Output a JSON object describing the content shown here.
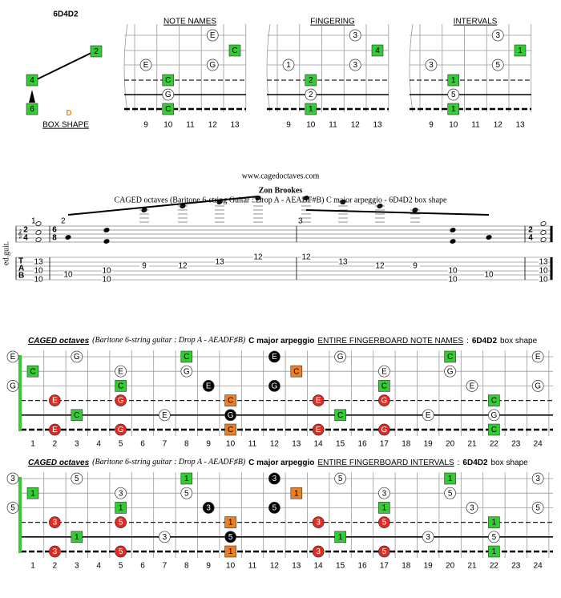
{
  "logo": {
    "title": "6D4D2",
    "letter": "D",
    "caption": "BOX SHAPE",
    "markers": [
      "2",
      "4",
      "6"
    ]
  },
  "diagram_frets": [
    9,
    10,
    11,
    12,
    13
  ],
  "diagrams": [
    {
      "title": "NOTE NAMES",
      "notes": [
        [
          1,
          12,
          "E",
          "#ffffff",
          "circle"
        ],
        [
          2,
          13,
          "C",
          "#33cc33",
          "square"
        ],
        [
          3,
          9,
          "E",
          "#ffffff",
          "circle"
        ],
        [
          3,
          12,
          "G",
          "#ffffff",
          "circle"
        ],
        [
          4,
          10,
          "C",
          "#33cc33",
          "square"
        ],
        [
          5,
          10,
          "G",
          "#ffffff",
          "circle"
        ],
        [
          6,
          10,
          "C",
          "#33cc33",
          "square"
        ]
      ]
    },
    {
      "title": "FINGERING",
      "notes": [
        [
          1,
          12,
          "3",
          "#ffffff",
          "circle"
        ],
        [
          2,
          13,
          "4",
          "#33cc33",
          "square"
        ],
        [
          3,
          9,
          "1",
          "#ffffff",
          "circle"
        ],
        [
          3,
          12,
          "3",
          "#ffffff",
          "circle"
        ],
        [
          4,
          10,
          "2",
          "#33cc33",
          "square"
        ],
        [
          5,
          10,
          "2",
          "#ffffff",
          "circle"
        ],
        [
          6,
          10,
          "1",
          "#33cc33",
          "square"
        ]
      ]
    },
    {
      "title": "INTERVALS",
      "notes": [
        [
          1,
          12,
          "3",
          "#ffffff",
          "circle"
        ],
        [
          2,
          13,
          "1",
          "#33cc33",
          "square"
        ],
        [
          3,
          9,
          "3",
          "#ffffff",
          "circle"
        ],
        [
          3,
          12,
          "5",
          "#ffffff",
          "circle"
        ],
        [
          4,
          10,
          "1",
          "#33cc33",
          "square"
        ],
        [
          5,
          10,
          "5",
          "#ffffff",
          "circle"
        ],
        [
          6,
          10,
          "1",
          "#33cc33",
          "square"
        ]
      ]
    }
  ],
  "score": {
    "site": "www.cagedoctaves.com",
    "author": "Zon Brookes",
    "subtitle": "CAGED octaves (Baritone 6-string Guitar : Drop A - AEADF#B) C major arpeggio - 6D4D2 box shape",
    "instrument": "ed.guit.",
    "tab_clef": [
      "T",
      "A",
      "B"
    ],
    "time_signatures": [
      [
        2,
        4
      ],
      [
        6,
        8
      ],
      [
        2,
        4
      ]
    ],
    "measure_numbers": [
      1,
      2,
      3
    ],
    "tab": [
      [
        [
          2,
          13
        ],
        [
          4,
          10
        ],
        [
          6,
          10
        ]
      ],
      [
        [
          5,
          10
        ]
      ],
      [
        [
          4,
          10
        ],
        [
          6,
          10
        ]
      ],
      [
        [
          3,
          9
        ]
      ],
      [
        [
          3,
          12
        ]
      ],
      [
        [
          2,
          13
        ]
      ],
      [
        [
          1,
          12
        ]
      ],
      [
        [
          1,
          12
        ]
      ],
      [
        [
          2,
          13
        ]
      ],
      [
        [
          3,
          12
        ]
      ],
      [
        [
          3,
          9
        ]
      ],
      [
        [
          4,
          10
        ],
        [
          6,
          10
        ]
      ],
      [
        [
          5,
          10
        ]
      ],
      [
        [
          2,
          13
        ],
        [
          4,
          10
        ],
        [
          6,
          10
        ]
      ]
    ]
  },
  "board_frets": [
    1,
    2,
    3,
    4,
    5,
    6,
    7,
    8,
    9,
    10,
    11,
    12,
    13,
    14,
    15,
    16,
    17,
    18,
    19,
    20,
    21,
    22,
    23,
    24
  ],
  "boards": [
    {
      "title_parts": [
        "CAGED octaves",
        "(Baritone 6-string guitar : Drop A - AEADF♯B)",
        "C major arpeggio",
        "ENTIRE FINGERBOARD NOTE NAMES",
        ":",
        "6D4D2",
        "box shape"
      ],
      "notes": [
        [
          1,
          0,
          "E",
          "#ffffff",
          "circle"
        ],
        [
          1,
          3,
          "G",
          "#ffffff",
          "circle"
        ],
        [
          1,
          8,
          "C",
          "#33cc33",
          "square"
        ],
        [
          1,
          12,
          "E",
          "#000000",
          "circle"
        ],
        [
          1,
          15,
          "G",
          "#ffffff",
          "circle"
        ],
        [
          1,
          20,
          "C",
          "#33cc33",
          "square"
        ],
        [
          1,
          24,
          "E",
          "#ffffff",
          "circle"
        ],
        [
          2,
          1,
          "C",
          "#33cc33",
          "square"
        ],
        [
          2,
          5,
          "E",
          "#ffffff",
          "circle"
        ],
        [
          2,
          8,
          "G",
          "#ffffff",
          "circle"
        ],
        [
          2,
          13,
          "C",
          "#f07d1e",
          "square"
        ],
        [
          2,
          17,
          "E",
          "#ffffff",
          "circle"
        ],
        [
          2,
          20,
          "G",
          "#ffffff",
          "circle"
        ],
        [
          3,
          0,
          "G",
          "#ffffff",
          "circle"
        ],
        [
          3,
          5,
          "C",
          "#33cc33",
          "square"
        ],
        [
          3,
          9,
          "E",
          "#000000",
          "circle"
        ],
        [
          3,
          12,
          "G",
          "#000000",
          "circle"
        ],
        [
          3,
          17,
          "C",
          "#33cc33",
          "square"
        ],
        [
          3,
          21,
          "E",
          "#ffffff",
          "circle"
        ],
        [
          3,
          24,
          "G",
          "#ffffff",
          "circle"
        ],
        [
          4,
          2,
          "E",
          "#e8281e",
          "circle"
        ],
        [
          4,
          5,
          "G",
          "#e8281e",
          "circle"
        ],
        [
          4,
          10,
          "C",
          "#f07d1e",
          "square"
        ],
        [
          4,
          14,
          "E",
          "#e8281e",
          "circle"
        ],
        [
          4,
          17,
          "G",
          "#e8281e",
          "circle"
        ],
        [
          4,
          22,
          "C",
          "#33cc33",
          "square"
        ],
        [
          5,
          3,
          "C",
          "#33cc33",
          "square"
        ],
        [
          5,
          7,
          "E",
          "#ffffff",
          "circle"
        ],
        [
          5,
          10,
          "G",
          "#000000",
          "circle"
        ],
        [
          5,
          15,
          "C",
          "#33cc33",
          "square"
        ],
        [
          5,
          19,
          "E",
          "#ffffff",
          "circle"
        ],
        [
          5,
          22,
          "G",
          "#ffffff",
          "circle"
        ],
        [
          6,
          2,
          "E",
          "#e8281e",
          "circle"
        ],
        [
          6,
          5,
          "G",
          "#e8281e",
          "circle"
        ],
        [
          6,
          10,
          "C",
          "#f07d1e",
          "square"
        ],
        [
          6,
          14,
          "E",
          "#e8281e",
          "circle"
        ],
        [
          6,
          17,
          "G",
          "#e8281e",
          "circle"
        ],
        [
          6,
          22,
          "C",
          "#33cc33",
          "square"
        ]
      ]
    },
    {
      "title_parts": [
        "CAGED octaves",
        "(Baritone 6-string guitar : Drop A - AEADF♯B)",
        "C major arpeggio",
        "ENTIRE FINGERBOARD INTERVALS",
        ":",
        "6D4D2",
        "box shape"
      ],
      "notes": [
        [
          1,
          0,
          "3",
          "#ffffff",
          "circle"
        ],
        [
          1,
          3,
          "5",
          "#ffffff",
          "circle"
        ],
        [
          1,
          8,
          "1",
          "#33cc33",
          "square"
        ],
        [
          1,
          12,
          "3",
          "#000000",
          "circle"
        ],
        [
          1,
          15,
          "5",
          "#ffffff",
          "circle"
        ],
        [
          1,
          20,
          "1",
          "#33cc33",
          "square"
        ],
        [
          1,
          24,
          "3",
          "#ffffff",
          "circle"
        ],
        [
          2,
          1,
          "1",
          "#33cc33",
          "square"
        ],
        [
          2,
          5,
          "3",
          "#ffffff",
          "circle"
        ],
        [
          2,
          8,
          "5",
          "#ffffff",
          "circle"
        ],
        [
          2,
          13,
          "1",
          "#f07d1e",
          "square"
        ],
        [
          2,
          17,
          "3",
          "#ffffff",
          "circle"
        ],
        [
          2,
          20,
          "5",
          "#ffffff",
          "circle"
        ],
        [
          3,
          0,
          "5",
          "#ffffff",
          "circle"
        ],
        [
          3,
          5,
          "1",
          "#33cc33",
          "square"
        ],
        [
          3,
          9,
          "3",
          "#000000",
          "circle"
        ],
        [
          3,
          12,
          "5",
          "#000000",
          "circle"
        ],
        [
          3,
          17,
          "1",
          "#33cc33",
          "square"
        ],
        [
          3,
          21,
          "3",
          "#ffffff",
          "circle"
        ],
        [
          3,
          24,
          "5",
          "#ffffff",
          "circle"
        ],
        [
          4,
          2,
          "3",
          "#e8281e",
          "circle"
        ],
        [
          4,
          5,
          "5",
          "#e8281e",
          "circle"
        ],
        [
          4,
          10,
          "1",
          "#f07d1e",
          "square"
        ],
        [
          4,
          14,
          "3",
          "#e8281e",
          "circle"
        ],
        [
          4,
          17,
          "5",
          "#e8281e",
          "circle"
        ],
        [
          4,
          22,
          "1",
          "#33cc33",
          "square"
        ],
        [
          5,
          3,
          "1",
          "#33cc33",
          "square"
        ],
        [
          5,
          7,
          "3",
          "#ffffff",
          "circle"
        ],
        [
          5,
          10,
          "5",
          "#000000",
          "circle"
        ],
        [
          5,
          15,
          "1",
          "#33cc33",
          "square"
        ],
        [
          5,
          19,
          "3",
          "#ffffff",
          "circle"
        ],
        [
          5,
          22,
          "5",
          "#ffffff",
          "circle"
        ],
        [
          6,
          2,
          "3",
          "#e8281e",
          "circle"
        ],
        [
          6,
          5,
          "5",
          "#e8281e",
          "circle"
        ],
        [
          6,
          10,
          "1",
          "#f07d1e",
          "square"
        ],
        [
          6,
          14,
          "3",
          "#e8281e",
          "circle"
        ],
        [
          6,
          17,
          "5",
          "#e8281e",
          "circle"
        ],
        [
          6,
          22,
          "1",
          "#33cc33",
          "square"
        ]
      ]
    }
  ]
}
